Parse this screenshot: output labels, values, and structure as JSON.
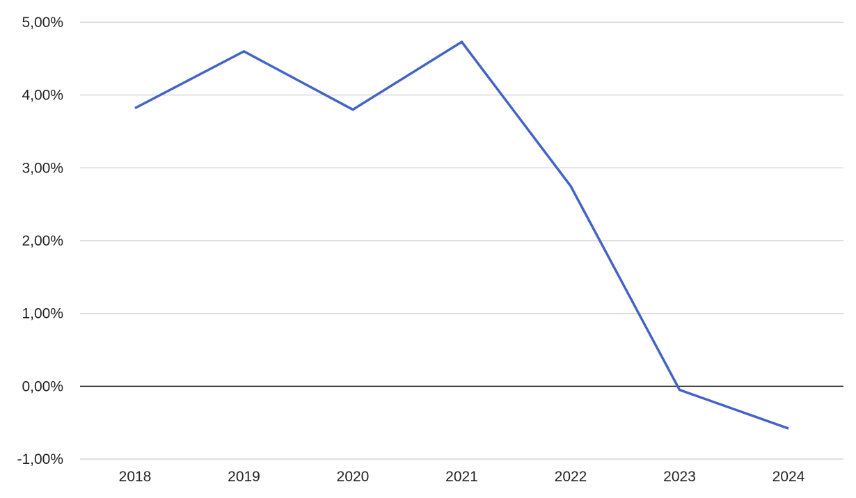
{
  "chart_data": {
    "type": "line",
    "title": "",
    "xlabel": "",
    "ylabel": "",
    "categories": [
      "2018",
      "2019",
      "2020",
      "2021",
      "2022",
      "2023",
      "2024"
    ],
    "series": [
      {
        "values": [
          3.82,
          4.6,
          3.8,
          4.73,
          2.75,
          -0.05,
          -0.58
        ],
        "color": "#4363C6"
      }
    ],
    "ylim": [
      -1,
      5
    ],
    "yticks": [
      5,
      4,
      3,
      2,
      1,
      0,
      -1
    ],
    "ytick_labels": [
      "5,00%",
      "4,00%",
      "3,00%",
      "2,00%",
      "1,00%",
      "0,00%",
      "-1,00%"
    ],
    "grid": true,
    "legend": "none",
    "colors": {
      "line": "#4363C6",
      "grid": "#CCCCCC",
      "zero_line": "#222222",
      "text": "#222222"
    }
  }
}
